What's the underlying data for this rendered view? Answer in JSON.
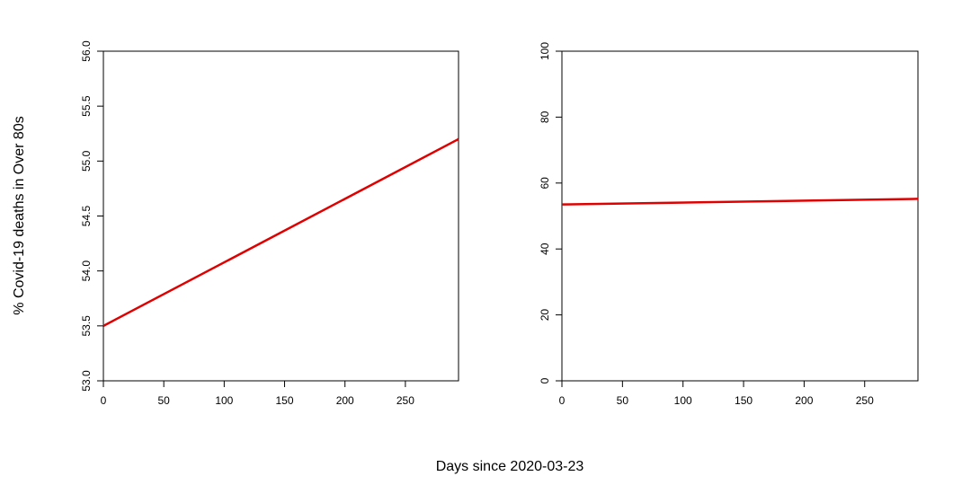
{
  "chart_data": [
    {
      "type": "line",
      "x": [
        0,
        294
      ],
      "series": [
        {
          "color": "#e00000",
          "values": [
            53.5,
            55.2
          ]
        }
      ],
      "xlim": [
        0,
        294
      ],
      "ylim": [
        53,
        56
      ],
      "xticks": [
        0,
        50,
        100,
        150,
        200,
        250
      ],
      "yticks": [
        {
          "value": 53,
          "label": "53.0"
        },
        {
          "value": 53.5,
          "label": "53.5"
        },
        {
          "value": 54,
          "label": "54.0"
        },
        {
          "value": 54.5,
          "label": "54.5"
        },
        {
          "value": 55,
          "label": "55.0"
        },
        {
          "value": 55.5,
          "label": "55.5"
        },
        {
          "value": 56,
          "label": "56.0"
        }
      ]
    },
    {
      "type": "line",
      "x": [
        0,
        294
      ],
      "series": [
        {
          "color": "#e00000",
          "values": [
            53.5,
            55.2
          ]
        }
      ],
      "xlim": [
        0,
        294
      ],
      "ylim": [
        0,
        100
      ],
      "xticks": [
        0,
        50,
        100,
        150,
        200,
        250
      ],
      "yticks": [
        0,
        20,
        40,
        60,
        80,
        100
      ]
    }
  ],
  "ylabel": "% Covid-19 deaths in Over 80s",
  "xlabel": "Days since 2020-03-23"
}
